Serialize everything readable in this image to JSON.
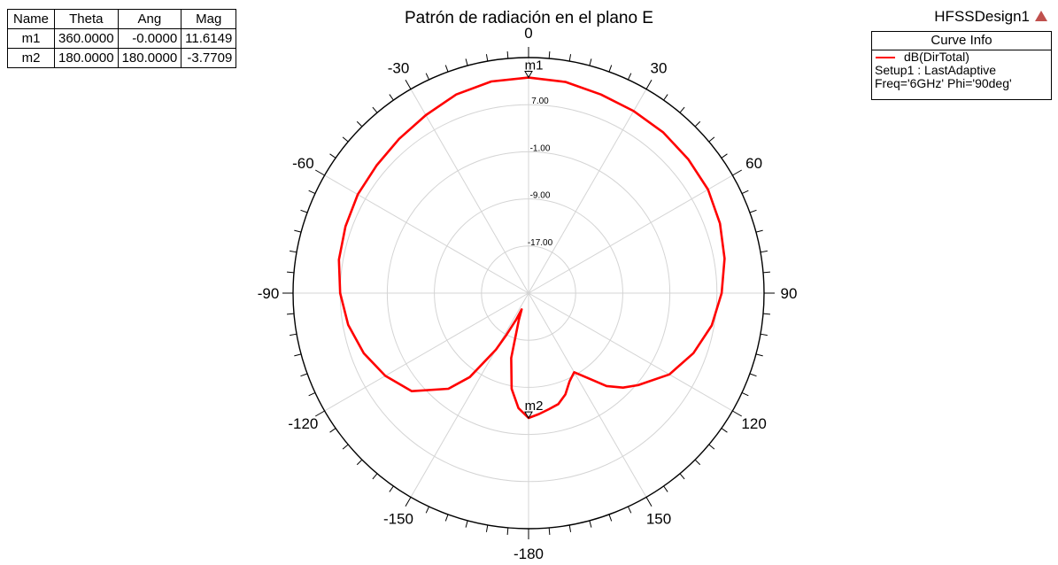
{
  "title": "Patrón de radiación en el plano E",
  "design_name": "HFSSDesign1",
  "marker_table": {
    "headers": [
      "Name",
      "Theta",
      "Ang",
      "Mag"
    ],
    "rows": [
      [
        "m1",
        "360.0000",
        "-0.0000",
        "11.6149"
      ],
      [
        "m2",
        "180.0000",
        "180.0000",
        "-3.7709"
      ]
    ]
  },
  "curve_info": {
    "header": "Curve Info",
    "name": "dB(DirTotal)",
    "setup": "Setup1 : LastAdaptive",
    "freq": "Freq='6GHz' Phi='90deg'",
    "color": "#ff0000"
  },
  "chart_data": {
    "type": "polar-line",
    "title": "Patrón de radiación en el plano E",
    "angle_labels": [
      "0",
      "30",
      "60",
      "90",
      "120",
      "150",
      "-180",
      "-150",
      "-120",
      "-90",
      "-60",
      "-30"
    ],
    "angle_values": [
      0,
      30,
      60,
      90,
      120,
      150,
      180,
      210,
      240,
      270,
      300,
      330
    ],
    "radial_labels": [
      "7.00",
      "-1.00",
      "-9.00",
      "-17.00"
    ],
    "radial_values": [
      7,
      -1,
      -9,
      -17
    ],
    "r_range": [
      -25,
      15
    ],
    "grid": true,
    "markers": [
      {
        "name": "m1",
        "theta": 0,
        "mag": 11.6149
      },
      {
        "name": "m2",
        "theta": 180,
        "mag": -3.7709
      }
    ],
    "series": [
      {
        "name": "dB(DirTotal)",
        "color": "#ff0000",
        "theta": [
          0,
          10,
          20,
          30,
          40,
          50,
          60,
          70,
          80,
          90,
          100,
          110,
          120,
          130,
          135,
          140,
          145,
          150,
          155,
          160,
          165,
          170,
          175,
          180,
          185,
          190,
          195,
          200,
          203,
          205,
          208,
          210,
          215,
          220,
          230,
          240,
          250,
          260,
          270,
          280,
          290,
          300,
          310,
          320,
          330,
          340,
          350,
          360
        ],
        "mag": [
          11.6,
          11.4,
          10.9,
          10.7,
          10.6,
          10.4,
          10.2,
          9.6,
          8.8,
          7.8,
          6.6,
          4.8,
          2.6,
          -0.7,
          -2.3,
          -4.4,
          -7.4,
          -9.5,
          -8.5,
          -6.7,
          -5.5,
          -5.0,
          -4.4,
          -3.8,
          -5.4,
          -8.5,
          -13.6,
          -20.2,
          -22.0,
          -20.0,
          -16.9,
          -13.9,
          -7.6,
          -3.8,
          0.9,
          3.1,
          4.8,
          6.1,
          7.0,
          7.7,
          8.1,
          8.5,
          8.7,
          9.2,
          9.9,
          10.9,
          11.5,
          11.6
        ]
      }
    ]
  }
}
